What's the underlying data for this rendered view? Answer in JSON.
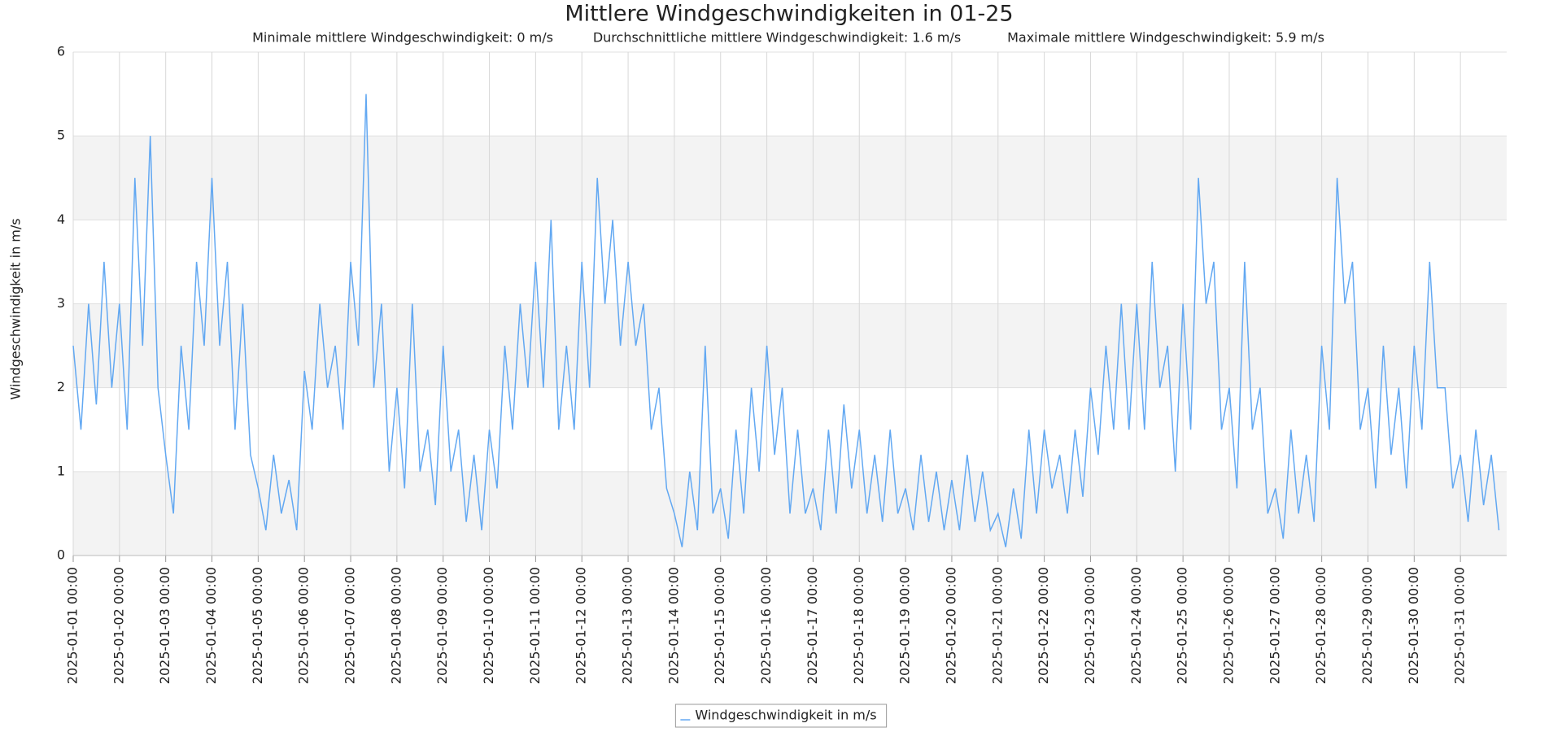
{
  "chart_data": {
    "type": "line",
    "title": "Mittlere Windgeschwindigkeiten in 01-25",
    "subtitle": [
      "Minimale mittlere Windgeschwindigkeit: 0 m/s",
      "Durchschnittliche mittlere Windgeschwindigkeit: 1.6 m/s",
      "Maximale mittlere Windgeschwindigkeit: 5.9 m/s"
    ],
    "y_label": "Windgeschwindigkeit in m/s",
    "ylim": [
      0,
      6
    ],
    "yticks": [
      0,
      1,
      2,
      3,
      4,
      5,
      6
    ],
    "alternate_bands": true,
    "grid": true,
    "xlim": [
      "2025-01-01 00:00",
      "2025-02-01 00:00"
    ],
    "xticks": [
      "2025-01-01 00:00",
      "2025-01-02 00:00",
      "2025-01-03 00:00",
      "2025-01-04 00:00",
      "2025-01-05 00:00",
      "2025-01-06 00:00",
      "2025-01-07 00:00",
      "2025-01-08 00:00",
      "2025-01-09 00:00",
      "2025-01-10 00:00",
      "2025-01-11 00:00",
      "2025-01-12 00:00",
      "2025-01-13 00:00",
      "2025-01-14 00:00",
      "2025-01-15 00:00",
      "2025-01-16 00:00",
      "2025-01-17 00:00",
      "2025-01-18 00:00",
      "2025-01-19 00:00",
      "2025-01-20 00:00",
      "2025-01-21 00:00",
      "2025-01-22 00:00",
      "2025-01-23 00:00",
      "2025-01-24 00:00",
      "2025-01-25 00:00",
      "2025-01-26 00:00",
      "2025-01-27 00:00",
      "2025-01-28 00:00",
      "2025-01-29 00:00",
      "2025-01-30 00:00",
      "2025-01-31 00:00"
    ],
    "x": [
      "2025-01-01 00:00",
      "2025-01-01 04:00",
      "2025-01-01 08:00",
      "2025-01-01 12:00",
      "2025-01-01 16:00",
      "2025-01-01 20:00",
      "2025-01-02 00:00",
      "2025-01-02 04:00",
      "2025-01-02 08:00",
      "2025-01-02 12:00",
      "2025-01-02 16:00",
      "2025-01-02 20:00",
      "2025-01-03 00:00",
      "2025-01-03 04:00",
      "2025-01-03 08:00",
      "2025-01-03 12:00",
      "2025-01-03 16:00",
      "2025-01-03 20:00",
      "2025-01-04 00:00",
      "2025-01-04 04:00",
      "2025-01-04 08:00",
      "2025-01-04 12:00",
      "2025-01-04 16:00",
      "2025-01-04 20:00",
      "2025-01-05 00:00",
      "2025-01-05 04:00",
      "2025-01-05 08:00",
      "2025-01-05 12:00",
      "2025-01-05 16:00",
      "2025-01-05 20:00",
      "2025-01-06 00:00",
      "2025-01-06 04:00",
      "2025-01-06 08:00",
      "2025-01-06 12:00",
      "2025-01-06 16:00",
      "2025-01-06 20:00",
      "2025-01-07 00:00",
      "2025-01-07 04:00",
      "2025-01-07 08:00",
      "2025-01-07 12:00",
      "2025-01-07 16:00",
      "2025-01-07 20:00",
      "2025-01-08 00:00",
      "2025-01-08 04:00",
      "2025-01-08 08:00",
      "2025-01-08 12:00",
      "2025-01-08 16:00",
      "2025-01-08 20:00",
      "2025-01-09 00:00",
      "2025-01-09 04:00",
      "2025-01-09 08:00",
      "2025-01-09 12:00",
      "2025-01-09 16:00",
      "2025-01-09 20:00",
      "2025-01-10 00:00",
      "2025-01-10 04:00",
      "2025-01-10 08:00",
      "2025-01-10 12:00",
      "2025-01-10 16:00",
      "2025-01-10 20:00",
      "2025-01-11 00:00",
      "2025-01-11 04:00",
      "2025-01-11 08:00",
      "2025-01-11 12:00",
      "2025-01-11 16:00",
      "2025-01-11 20:00",
      "2025-01-12 00:00",
      "2025-01-12 04:00",
      "2025-01-12 08:00",
      "2025-01-12 12:00",
      "2025-01-12 16:00",
      "2025-01-12 20:00",
      "2025-01-13 00:00",
      "2025-01-13 04:00",
      "2025-01-13 08:00",
      "2025-01-13 12:00",
      "2025-01-13 16:00",
      "2025-01-13 20:00",
      "2025-01-14 00:00",
      "2025-01-14 04:00",
      "2025-01-14 08:00",
      "2025-01-14 12:00",
      "2025-01-14 16:00",
      "2025-01-14 20:00",
      "2025-01-15 00:00",
      "2025-01-15 04:00",
      "2025-01-15 08:00",
      "2025-01-15 12:00",
      "2025-01-15 16:00",
      "2025-01-15 20:00",
      "2025-01-16 00:00",
      "2025-01-16 04:00",
      "2025-01-16 08:00",
      "2025-01-16 12:00",
      "2025-01-16 16:00",
      "2025-01-16 20:00",
      "2025-01-17 00:00",
      "2025-01-17 04:00",
      "2025-01-17 08:00",
      "2025-01-17 12:00",
      "2025-01-17 16:00",
      "2025-01-17 20:00",
      "2025-01-18 00:00",
      "2025-01-18 04:00",
      "2025-01-18 08:00",
      "2025-01-18 12:00",
      "2025-01-18 16:00",
      "2025-01-18 20:00",
      "2025-01-19 00:00",
      "2025-01-19 04:00",
      "2025-01-19 08:00",
      "2025-01-19 12:00",
      "2025-01-19 16:00",
      "2025-01-19 20:00",
      "2025-01-20 00:00",
      "2025-01-20 04:00",
      "2025-01-20 08:00",
      "2025-01-20 12:00",
      "2025-01-20 16:00",
      "2025-01-20 20:00",
      "2025-01-21 00:00",
      "2025-01-21 04:00",
      "2025-01-21 08:00",
      "2025-01-21 12:00",
      "2025-01-21 16:00",
      "2025-01-21 20:00",
      "2025-01-22 00:00",
      "2025-01-22 04:00",
      "2025-01-22 08:00",
      "2025-01-22 12:00",
      "2025-01-22 16:00",
      "2025-01-22 20:00",
      "2025-01-23 00:00",
      "2025-01-23 04:00",
      "2025-01-23 08:00",
      "2025-01-23 12:00",
      "2025-01-23 16:00",
      "2025-01-23 20:00",
      "2025-01-24 00:00",
      "2025-01-24 04:00",
      "2025-01-24 08:00",
      "2025-01-24 12:00",
      "2025-01-24 16:00",
      "2025-01-24 20:00",
      "2025-01-25 00:00",
      "2025-01-25 04:00",
      "2025-01-25 08:00",
      "2025-01-25 12:00",
      "2025-01-25 16:00",
      "2025-01-25 20:00",
      "2025-01-26 00:00",
      "2025-01-26 04:00",
      "2025-01-26 08:00",
      "2025-01-26 12:00",
      "2025-01-26 16:00",
      "2025-01-26 20:00",
      "2025-01-27 00:00",
      "2025-01-27 04:00",
      "2025-01-27 08:00",
      "2025-01-27 12:00",
      "2025-01-27 16:00",
      "2025-01-27 20:00",
      "2025-01-28 00:00",
      "2025-01-28 04:00",
      "2025-01-28 08:00",
      "2025-01-28 12:00",
      "2025-01-28 16:00",
      "2025-01-28 20:00",
      "2025-01-29 00:00",
      "2025-01-29 04:00",
      "2025-01-29 08:00",
      "2025-01-29 12:00",
      "2025-01-29 16:00",
      "2025-01-29 20:00",
      "2025-01-30 00:00",
      "2025-01-30 04:00",
      "2025-01-30 08:00",
      "2025-01-30 12:00",
      "2025-01-30 16:00",
      "2025-01-30 20:00",
      "2025-01-31 00:00",
      "2025-01-31 04:00",
      "2025-01-31 08:00",
      "2025-01-31 12:00",
      "2025-01-31 16:00",
      "2025-01-31 20:00"
    ],
    "series": [
      {
        "name": "Windgeschwindigkeit in m/s",
        "color": "#62a8f2",
        "values": [
          2.5,
          1.5,
          3.0,
          1.8,
          3.5,
          2.0,
          3.0,
          1.5,
          4.5,
          2.5,
          5.0,
          2.0,
          1.2,
          0.5,
          2.5,
          1.5,
          3.5,
          2.5,
          4.5,
          2.5,
          3.5,
          1.5,
          3.0,
          1.2,
          0.8,
          0.3,
          1.2,
          0.5,
          0.9,
          0.3,
          2.2,
          1.5,
          3.0,
          2.0,
          2.5,
          1.5,
          3.5,
          2.5,
          5.5,
          2.0,
          3.0,
          1.0,
          2.0,
          0.8,
          3.0,
          1.0,
          1.5,
          0.6,
          2.5,
          1.0,
          1.5,
          0.4,
          1.2,
          0.3,
          1.5,
          0.8,
          2.5,
          1.5,
          3.0,
          2.0,
          3.5,
          2.0,
          4.0,
          1.5,
          2.5,
          1.5,
          3.5,
          2.0,
          4.5,
          3.0,
          4.0,
          2.5,
          3.5,
          2.5,
          3.0,
          1.5,
          2.0,
          0.8,
          0.5,
          0.1,
          1.0,
          0.3,
          2.5,
          0.5,
          0.8,
          0.2,
          1.5,
          0.5,
          2.0,
          1.0,
          2.5,
          1.2,
          2.0,
          0.5,
          1.5,
          0.5,
          0.8,
          0.3,
          1.5,
          0.5,
          1.8,
          0.8,
          1.5,
          0.5,
          1.2,
          0.4,
          1.5,
          0.5,
          0.8,
          0.3,
          1.2,
          0.4,
          1.0,
          0.3,
          0.9,
          0.3,
          1.2,
          0.4,
          1.0,
          0.3,
          0.5,
          0.1,
          0.8,
          0.2,
          1.5,
          0.5,
          1.5,
          0.8,
          1.2,
          0.5,
          1.5,
          0.7,
          2.0,
          1.2,
          2.5,
          1.5,
          3.0,
          1.5,
          3.0,
          1.5,
          3.5,
          2.0,
          2.5,
          1.0,
          3.0,
          1.5,
          4.5,
          3.0,
          3.5,
          1.5,
          2.0,
          0.8,
          3.5,
          1.5,
          2.0,
          0.5,
          0.8,
          0.2,
          1.5,
          0.5,
          1.2,
          0.4,
          2.5,
          1.5,
          4.5,
          3.0,
          3.5,
          1.5,
          2.0,
          0.8,
          2.5,
          1.2,
          2.0,
          0.8,
          2.5,
          1.5,
          3.5,
          2.0,
          2.0,
          0.8,
          1.2,
          0.4,
          1.5,
          0.6,
          1.2,
          0.3
        ]
      }
    ],
    "legend": "bottom"
  }
}
